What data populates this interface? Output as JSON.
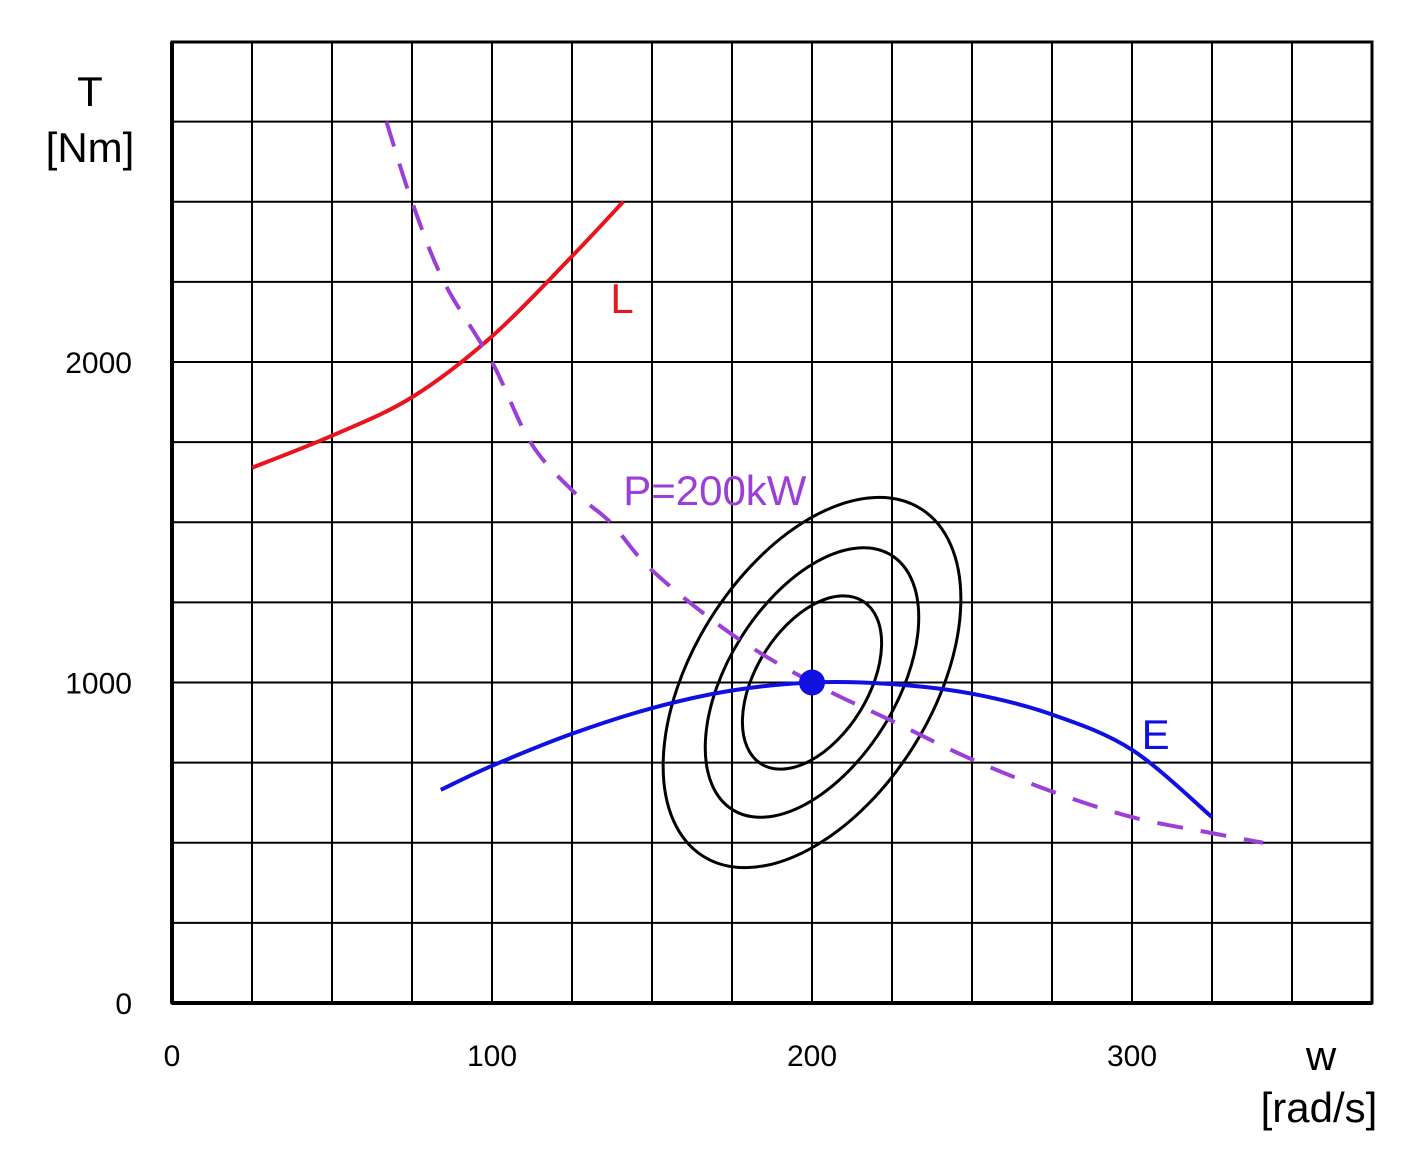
{
  "chart_data": {
    "type": "line",
    "title": "",
    "xlabel": "w",
    "xlabel_unit": "[rad/s]",
    "ylabel": "T",
    "ylabel_unit": "[Nm]",
    "xlim": [
      0,
      375
    ],
    "ylim": [
      0,
      2000
    ],
    "x_ticks": [
      {
        "value": 0,
        "label": "0"
      },
      {
        "value": 100,
        "label": "100"
      },
      {
        "value": 200,
        "label": "200"
      },
      {
        "value": 300,
        "label": "300"
      }
    ],
    "y_ticks": [
      {
        "value": 0,
        "label": "0"
      },
      {
        "value": 1000,
        "label": "1000"
      },
      {
        "value": 2000,
        "label": "2000"
      }
    ],
    "grid": true,
    "grid_x_step": 25,
    "grid_y_step": 250,
    "series": [
      {
        "name": "L",
        "color": "#e8141e",
        "style": "solid",
        "points": [
          [
            25,
            1670
          ],
          [
            50,
            1770
          ],
          [
            75,
            1890
          ],
          [
            100,
            2080
          ],
          [
            125,
            2330
          ],
          [
            141,
            2500
          ]
        ]
      },
      {
        "name": "P=200kW",
        "color": "#9b3fd8",
        "style": "dashed",
        "points": [
          [
            67,
            2750
          ],
          [
            75,
            2500
          ],
          [
            85,
            2250
          ],
          [
            100,
            2000
          ],
          [
            112,
            1750
          ],
          [
            125,
            1600
          ],
          [
            137,
            1500
          ],
          [
            150,
            1350
          ],
          [
            175,
            1150
          ],
          [
            200,
            1000
          ],
          [
            225,
            880
          ],
          [
            250,
            760
          ],
          [
            275,
            660
          ],
          [
            300,
            580
          ],
          [
            325,
            530
          ],
          [
            341,
            500
          ]
        ]
      },
      {
        "name": "E",
        "color": "#1010e0",
        "style": "solid",
        "points": [
          [
            84,
            665
          ],
          [
            100,
            740
          ],
          [
            125,
            840
          ],
          [
            150,
            920
          ],
          [
            175,
            975
          ],
          [
            200,
            1000
          ],
          [
            225,
            995
          ],
          [
            250,
            965
          ],
          [
            275,
            900
          ],
          [
            300,
            790
          ],
          [
            325,
            580
          ]
        ]
      }
    ],
    "annotations": [
      {
        "text": "L",
        "x": 137,
        "y": 2200,
        "color": "#e8141e"
      },
      {
        "text": "P=200kW",
        "x": 141,
        "y": 1600,
        "color": "#9b3fd8"
      },
      {
        "text": "E",
        "x": 303,
        "y": 840,
        "color": "#1010e0"
      }
    ],
    "marker": {
      "x": 200,
      "y": 1000,
      "color": "#1010e0"
    },
    "contours": {
      "color": "#000000",
      "center": [
        200,
        1000
      ],
      "angle_deg": -58,
      "rings": [
        {
          "a": 205,
          "b": 120
        },
        {
          "a": 150,
          "b": 84
        },
        {
          "a": 96,
          "b": 56
        }
      ]
    }
  }
}
